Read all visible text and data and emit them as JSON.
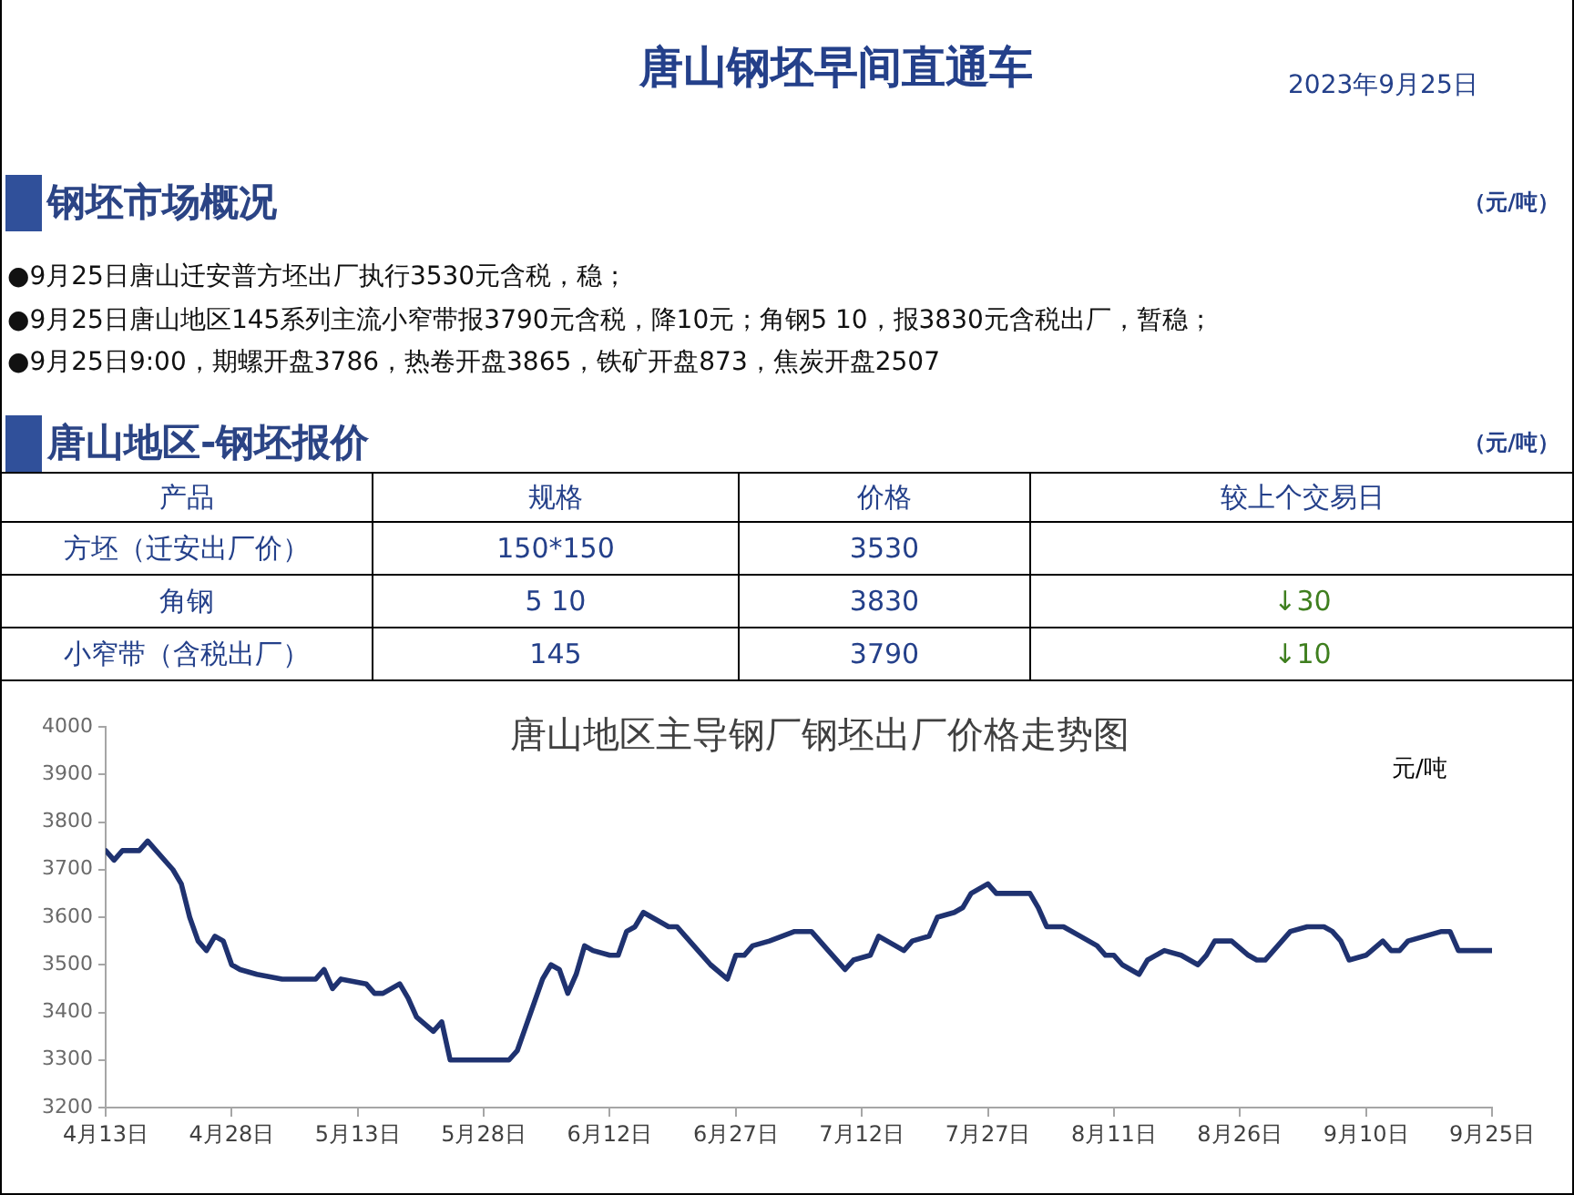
{
  "chart_data": [
    {
      "type": "other",
      "title": "唐山钢坯早间直通车",
      "subtitle": "2023年9月25日"
    },
    {
      "type": "other",
      "title": "钢坯市场概况",
      "subtitle": "（元/吨）",
      "annotations": [
        "●9月25日唐山迁安普方坯出厂执行3530元含税，稳；",
        "●9月25日唐山地区145系列主流小窄带报3790元含税，降10元；角钢5 10，报3830元含税出厂，暂稳；",
        "●9月25日9:00，期螺开盘3786，热卷开盘3865，铁矿开盘873，焦炭开盘2507"
      ]
    },
    {
      "type": "other",
      "title": "唐山地区-钢坯报价",
      "subtitle": "（元/吨）",
      "ylabel": "产品",
      "categories": [
        "规格",
        "价格",
        "较上个交易日"
      ],
      "y_categories": [
        "方坯（迁安出厂价）",
        "角钢",
        "小窄带（含税出厂）"
      ],
      "cell_labels": [
        [
          "150*150",
          "3530",
          null
        ],
        [
          "5 10",
          "3830",
          "↓30"
        ],
        [
          "145",
          "3790",
          "↓10"
        ]
      ]
    },
    {
      "type": "line",
      "title": "唐山地区主导钢厂钢坯出厂价格走势图",
      "ylabel": "元/吨",
      "x": [
        "--04-13",
        "--04-14",
        "--04-15",
        "--04-17",
        "--04-18",
        "--04-19",
        "--04-21",
        "--04-22",
        "--04-23",
        "--04-24",
        "--04-25",
        "--04-26",
        "--04-27",
        "--04-28",
        "--04-29",
        "--05-01",
        "--05-04",
        "--05-08",
        "--05-09",
        "--05-10",
        "--05-11",
        "--05-14",
        "--05-15",
        "--05-16",
        "--05-18",
        "--05-19",
        "--05-20",
        "--05-22",
        "--05-23",
        "--05-24",
        "--05-31",
        "--06-01",
        "--06-02",
        "--06-03",
        "--06-04",
        "--06-05",
        "--06-06",
        "--06-07",
        "--06-08",
        "--06-09",
        "--06-10",
        "--06-12",
        "--06-13",
        "--06-14",
        "--06-15",
        "--06-16",
        "--06-17",
        "--06-19",
        "--06-20",
        "--06-22",
        "--06-24",
        "--06-26",
        "--06-27",
        "--06-28",
        "--06-29",
        "--07-01",
        "--07-04",
        "--07-06",
        "--07-08",
        "--07-10",
        "--07-11",
        "--07-13",
        "--07-14",
        "--07-15",
        "--07-17",
        "--07-18",
        "--07-20",
        "--07-21",
        "--07-23",
        "--07-24",
        "--07-25",
        "--07-26",
        "--07-27",
        "--07-28",
        "--08-01",
        "--08-02",
        "--08-03",
        "--08-05",
        "--08-07",
        "--08-08",
        "--08-09",
        "--08-10",
        "--08-11",
        "--08-12",
        "--08-14",
        "--08-15",
        "--08-17",
        "--08-19",
        "--08-21",
        "--08-22",
        "--08-23",
        "--08-25",
        "--08-27",
        "--08-28",
        "--08-29",
        "--09-01",
        "--09-03",
        "--09-05",
        "--09-06",
        "--09-07",
        "--09-08",
        "--09-10",
        "--09-12",
        "--09-13",
        "--09-14",
        "--09-15",
        "--09-17",
        "--09-19",
        "--09-20",
        "--09-21",
        "--09-25"
      ],
      "series": [
        {
          "color": "#1f3270",
          "values": [
            3740,
            3720,
            3740,
            3740,
            3760,
            3740,
            3700,
            3670,
            3600,
            3550,
            3530,
            3560,
            3550,
            3500,
            3490,
            3480,
            3470,
            3470,
            3490,
            3450,
            3470,
            3460,
            3440,
            3440,
            3460,
            3430,
            3390,
            3360,
            3380,
            3300,
            3300,
            3320,
            3370,
            3420,
            3470,
            3500,
            3490,
            3440,
            3480,
            3540,
            3530,
            3520,
            3520,
            3570,
            3580,
            3610,
            3600,
            3580,
            3580,
            3540,
            3500,
            3470,
            3520,
            3520,
            3540,
            3550,
            3570,
            3570,
            3530,
            3490,
            3510,
            3520,
            3560,
            3550,
            3530,
            3550,
            3560,
            3600,
            3610,
            3620,
            3650,
            3660,
            3670,
            3650,
            3650,
            3620,
            3580,
            3580,
            3560,
            3550,
            3540,
            3520,
            3520,
            3500,
            3480,
            3510,
            3530,
            3520,
            3500,
            3520,
            3550,
            3550,
            3520,
            3510,
            3510,
            3570,
            3580,
            3580,
            3570,
            3550,
            3510,
            3520,
            3550,
            3530,
            3530,
            3550,
            3560,
            3570,
            3570,
            3530,
            3530
          ]
        }
      ],
      "xlim": [
        "--04-13",
        "--09-25"
      ],
      "xticks": [
        {
          "value": "--04-13",
          "label": "4月13日"
        },
        {
          "value": "--04-28",
          "label": "4月28日"
        },
        {
          "value": "--05-13",
          "label": "5月13日"
        },
        {
          "value": "--05-28",
          "label": "5月28日"
        },
        {
          "value": "--06-12",
          "label": "6月12日"
        },
        {
          "value": "--06-27",
          "label": "6月27日"
        },
        {
          "value": "--07-12",
          "label": "7月12日"
        },
        {
          "value": "--07-27",
          "label": "7月27日"
        },
        {
          "value": "--08-11",
          "label": "8月11日"
        },
        {
          "value": "--08-26",
          "label": "8月26日"
        },
        {
          "value": "--09-10",
          "label": "9月10日"
        },
        {
          "value": "--09-25",
          "label": "9月25日"
        }
      ],
      "ylim": [
        3200,
        4000
      ],
      "yticks": [
        3200,
        3300,
        3400,
        3500,
        3600,
        3700,
        3800,
        3900,
        4000
      ],
      "grid": false,
      "legend": false
    }
  ]
}
